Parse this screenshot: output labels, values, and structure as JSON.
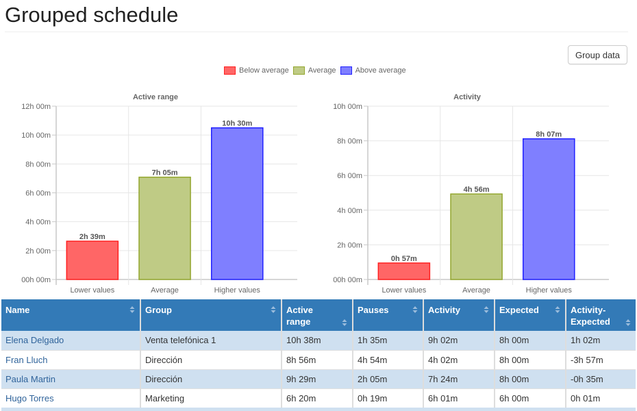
{
  "page": {
    "title": "Grouped schedule",
    "group_data_button": "Group data"
  },
  "legend": [
    {
      "label": "Below average",
      "fill": "#ff6666",
      "border": "#ff2020"
    },
    {
      "label": "Average",
      "fill": "#bfcb85",
      "border": "#93a62e"
    },
    {
      "label": "Above average",
      "fill": "#7f7fff",
      "border": "#2020ff"
    }
  ],
  "chart_data": [
    {
      "type": "bar",
      "title": "Active range",
      "categories": [
        "Lower values",
        "Average",
        "Higher values"
      ],
      "values_minutes": [
        159,
        425,
        630
      ],
      "value_labels": [
        "2h 39m",
        "7h 05m",
        "10h 30m"
      ],
      "ylim_minutes": [
        0,
        720
      ],
      "yticks_minutes": [
        0,
        120,
        240,
        360,
        480,
        600,
        720
      ],
      "ytick_labels": [
        "00h 00m",
        "2h 00m",
        "4h 00m",
        "6h 00m",
        "8h 00m",
        "10h 00m",
        "12h 00m"
      ],
      "xlabel": "",
      "ylabel": "",
      "grid": true
    },
    {
      "type": "bar",
      "title": "Activity",
      "categories": [
        "Lower values",
        "Average",
        "Higher values"
      ],
      "values_minutes": [
        57,
        296,
        487
      ],
      "value_labels": [
        "0h 57m",
        "4h 56m",
        "8h 07m"
      ],
      "ylim_minutes": [
        0,
        600
      ],
      "yticks_minutes": [
        0,
        120,
        240,
        360,
        480,
        600
      ],
      "ytick_labels": [
        "00h 00m",
        "2h 00m",
        "4h 00m",
        "6h 00m",
        "8h 00m",
        "10h 00m"
      ],
      "xlabel": "",
      "ylabel": "",
      "grid": true
    }
  ],
  "table": {
    "columns": [
      "Name",
      "Group",
      "Active range",
      "Pauses",
      "Activity",
      "Expected",
      "Activity-Expected"
    ],
    "rows": [
      [
        "Elena Delgado",
        "Venta telefónica 1",
        "10h 38m",
        "1h 35m",
        "9h 02m",
        "8h 00m",
        "1h 02m"
      ],
      [
        "Fran Lluch",
        "Dirección",
        "8h 56m",
        "4h 54m",
        "4h 02m",
        "8h 00m",
        "-3h 57m"
      ],
      [
        "Paula Martin",
        "Dirección",
        "9h 29m",
        "2h 05m",
        "7h 24m",
        "8h 00m",
        "-0h 35m"
      ],
      [
        "Hugo Torres",
        "Marketing",
        "6h 20m",
        "0h 19m",
        "6h 01m",
        "6h 00m",
        "0h 01m"
      ]
    ]
  }
}
